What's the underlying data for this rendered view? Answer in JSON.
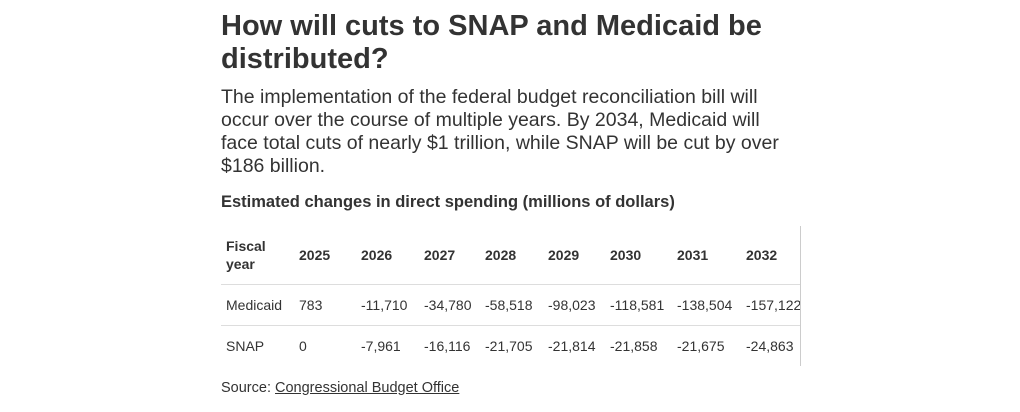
{
  "header": {
    "title": "How will cuts to SNAP and Medicaid be distributed?",
    "description": "The implementation of the federal budget reconciliation bill will occur over the course of multiple years. By 2034, Medicaid will face total cuts of nearly $1 trillion, while SNAP will be cut by over $186 billion."
  },
  "table": {
    "title": "Estimated changes in direct spending (millions of dollars)",
    "columns": [
      "Fiscal year",
      "2025",
      "2026",
      "2027",
      "2028",
      "2029",
      "2030",
      "2031",
      "2032"
    ],
    "rows": [
      [
        "Medicaid",
        "783",
        "-11,710",
        "-34,780",
        "-58,518",
        "-98,023",
        "-118,581",
        "-138,504",
        "-157,122"
      ],
      [
        "SNAP",
        "0",
        "-7,961",
        "-16,116",
        "-21,705",
        "-21,814",
        "-21,858",
        "-21,675",
        "-24,863"
      ]
    ]
  },
  "source": {
    "label": "Source:",
    "link": "Congressional Budget Office"
  }
}
